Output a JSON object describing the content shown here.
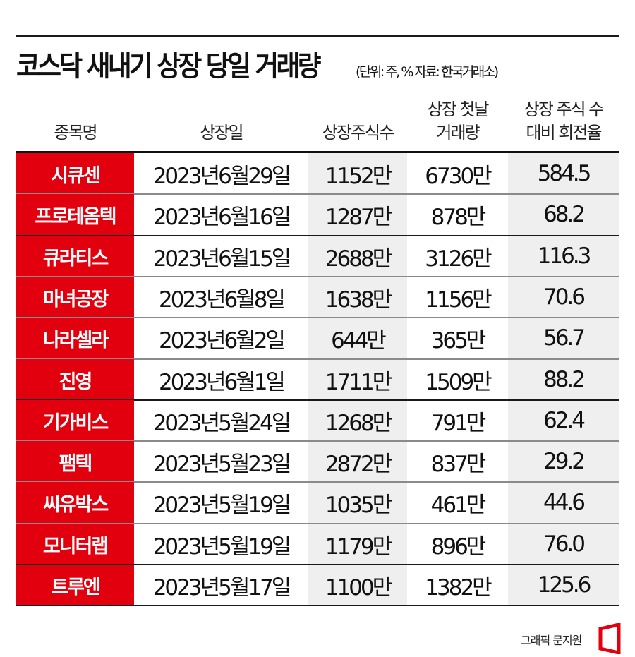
{
  "title": "코스닥 새내기 상장 당일 거래량",
  "subtitle": "(단위: 주, % 자료: 한국거래소)",
  "headers": {
    "name": "종목명",
    "date": "상장일",
    "shares": "상장주식수",
    "volume_l1": "상장 첫날",
    "volume_l2": "거래량",
    "turnover_l1": "상장 주식 수",
    "turnover_l2": "대비 회전율"
  },
  "rows": [
    {
      "name": "시큐센",
      "date": "2023년6월29일",
      "shares": "1152만",
      "volume": "6730만",
      "turnover": "584.5"
    },
    {
      "name": "프로테옴텍",
      "date": "2023년6월16일",
      "shares": "1287만",
      "volume": "878만",
      "turnover": "68.2"
    },
    {
      "name": "큐라티스",
      "date": "2023년6월15일",
      "shares": "2688만",
      "volume": "3126만",
      "turnover": "116.3"
    },
    {
      "name": "마녀공장",
      "date": "2023년6월8일",
      "shares": "1638만",
      "volume": "1156만",
      "turnover": "70.6"
    },
    {
      "name": "나라셀라",
      "date": "2023년6월2일",
      "shares": "644만",
      "volume": "365만",
      "turnover": "56.7"
    },
    {
      "name": "진영",
      "date": "2023년6월1일",
      "shares": "1711만",
      "volume": "1509만",
      "turnover": "88.2"
    },
    {
      "name": "기가비스",
      "date": "2023년5월24일",
      "shares": "1268만",
      "volume": "791만",
      "turnover": "62.4"
    },
    {
      "name": "팸텍",
      "date": "2023년5월23일",
      "shares": "2872만",
      "volume": "837만",
      "turnover": "29.2"
    },
    {
      "name": "씨유박스",
      "date": "2023년5월19일",
      "shares": "1035만",
      "volume": "461만",
      "turnover": "44.6"
    },
    {
      "name": "모니터랩",
      "date": "2023년5월19일",
      "shares": "1179만",
      "volume": "896만",
      "turnover": "76.0"
    },
    {
      "name": "트루엔",
      "date": "2023년5월17일",
      "shares": "1100만",
      "volume": "1382만",
      "turnover": "125.6"
    }
  ],
  "credit": "그래픽 문지원",
  "colors": {
    "accent": "#e2000f",
    "shade": "#efefef",
    "text": "#111111"
  },
  "chart_data": {
    "type": "table",
    "title": "코스닥 새내기 상장 당일 거래량",
    "subtitle": "(단위: 주, % 자료: 한국거래소)",
    "columns": [
      "종목명",
      "상장일",
      "상장주식수",
      "상장 첫날 거래량",
      "상장 주식 수 대비 회전율"
    ],
    "rows": [
      [
        "시큐센",
        "2023-06-29",
        11520000,
        67300000,
        584.5
      ],
      [
        "프로테옴텍",
        "2023-06-16",
        12870000,
        8780000,
        68.2
      ],
      [
        "큐라티스",
        "2023-06-15",
        26880000,
        31260000,
        116.3
      ],
      [
        "마녀공장",
        "2023-06-08",
        16380000,
        11560000,
        70.6
      ],
      [
        "나라셀라",
        "2023-06-02",
        6440000,
        3650000,
        56.7
      ],
      [
        "진영",
        "2023-06-01",
        17110000,
        15090000,
        88.2
      ],
      [
        "기가비스",
        "2023-05-24",
        12680000,
        7910000,
        62.4
      ],
      [
        "팸텍",
        "2023-05-23",
        28720000,
        8370000,
        29.2
      ],
      [
        "씨유박스",
        "2023-05-19",
        10350000,
        4610000,
        44.6
      ],
      [
        "모니터랩",
        "2023-05-19",
        11790000,
        8960000,
        76.0
      ],
      [
        "트루엔",
        "2023-05-17",
        11000000,
        13820000,
        125.6
      ]
    ],
    "units": "주, %",
    "source": "한국거래소"
  }
}
